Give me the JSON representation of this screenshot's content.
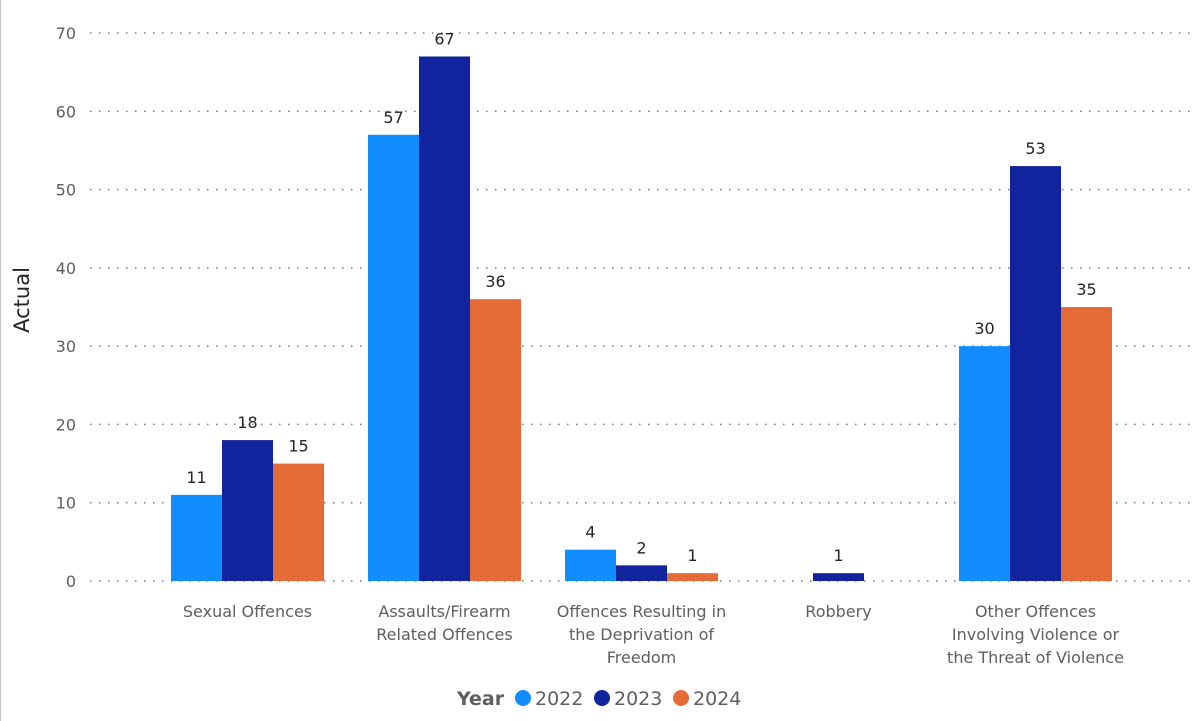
{
  "chart_data": {
    "type": "bar",
    "ylabel": "Actual",
    "xlabel": "",
    "ylim": [
      0,
      70
    ],
    "yticks": [
      0,
      10,
      20,
      30,
      40,
      50,
      60,
      70
    ],
    "grid": true,
    "legend_position": "bottom-center",
    "legend_title": "Year",
    "categories": [
      [
        "Sexual Offences"
      ],
      [
        "Assaults/Firearm",
        "Related Offences"
      ],
      [
        "Offences Resulting in",
        "the Deprivation of",
        "Freedom"
      ],
      [
        "Robbery"
      ],
      [
        "Other Offences",
        "Involving Violence or",
        "the Threat of Violence"
      ]
    ],
    "series": [
      {
        "name": "2022",
        "color": "#118dff",
        "values": [
          11,
          57,
          4,
          null,
          30
        ]
      },
      {
        "name": "2023",
        "color": "#12239e",
        "values": [
          18,
          67,
          2,
          1,
          53
        ]
      },
      {
        "name": "2024",
        "color": "#e66c37",
        "values": [
          15,
          36,
          1,
          null,
          35
        ]
      }
    ]
  }
}
